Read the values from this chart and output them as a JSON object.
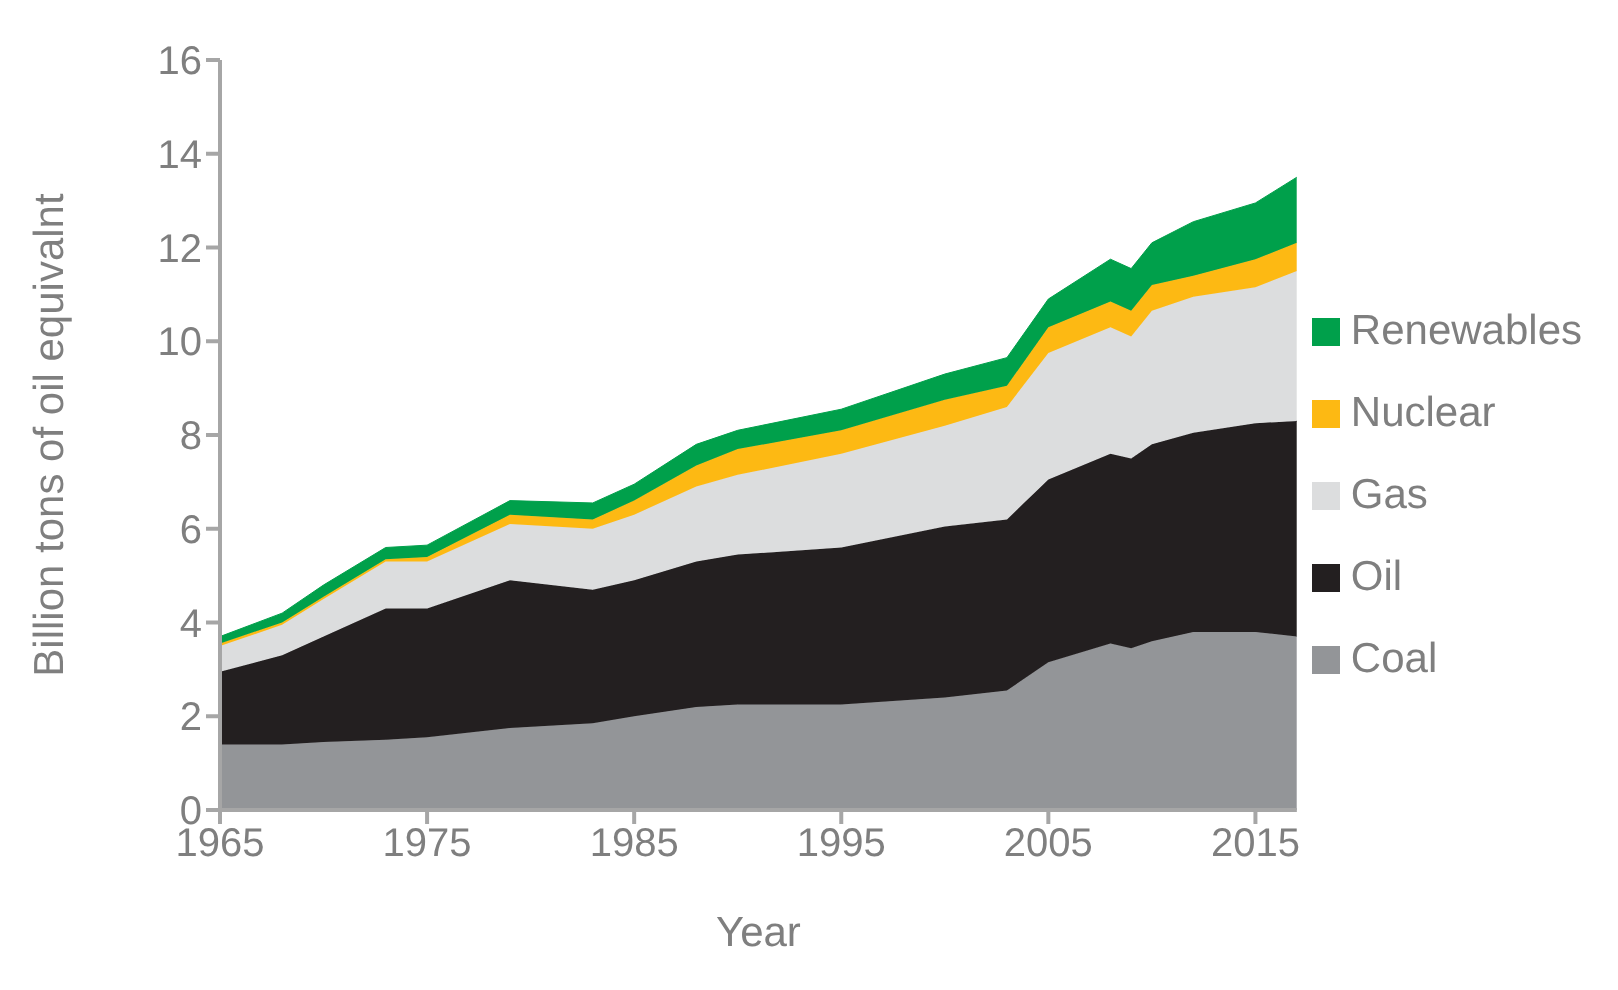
{
  "chart_data": {
    "type": "area",
    "stacked": true,
    "xlabel": "Year",
    "ylabel": "Billion tons of oil equivalnt",
    "x": [
      1965,
      1968,
      1970,
      1973,
      1975,
      1979,
      1983,
      1985,
      1988,
      1990,
      1995,
      2000,
      2003,
      2005,
      2008,
      2009,
      2010,
      2012,
      2015,
      2017
    ],
    "series": [
      {
        "name": "Coal",
        "color": "#939598",
        "values": [
          1.4,
          1.4,
          1.45,
          1.5,
          1.55,
          1.75,
          1.85,
          2.0,
          2.2,
          2.25,
          2.25,
          2.4,
          2.55,
          3.15,
          3.55,
          3.45,
          3.6,
          3.8,
          3.8,
          3.7
        ]
      },
      {
        "name": "Oil",
        "color": "#231f20",
        "values": [
          1.55,
          1.9,
          2.25,
          2.8,
          2.75,
          3.15,
          2.85,
          2.9,
          3.1,
          3.2,
          3.35,
          3.65,
          3.65,
          3.9,
          4.05,
          4.05,
          4.2,
          4.25,
          4.45,
          4.6
        ]
      },
      {
        "name": "Gas",
        "color": "#dcddde",
        "values": [
          0.55,
          0.65,
          0.8,
          1.0,
          1.0,
          1.2,
          1.3,
          1.4,
          1.6,
          1.7,
          2.0,
          2.15,
          2.4,
          2.7,
          2.7,
          2.6,
          2.85,
          2.9,
          2.9,
          3.2
        ]
      },
      {
        "name": "Nuclear",
        "color": "#fdb913",
        "values": [
          0.05,
          0.05,
          0.05,
          0.05,
          0.1,
          0.2,
          0.2,
          0.3,
          0.45,
          0.55,
          0.5,
          0.55,
          0.45,
          0.55,
          0.55,
          0.55,
          0.55,
          0.45,
          0.6,
          0.6
        ]
      },
      {
        "name": "Renewables",
        "color": "#00a04b",
        "values": [
          0.15,
          0.2,
          0.25,
          0.25,
          0.25,
          0.3,
          0.35,
          0.35,
          0.45,
          0.4,
          0.45,
          0.55,
          0.6,
          0.6,
          0.9,
          0.9,
          0.9,
          1.15,
          1.2,
          1.4
        ]
      }
    ],
    "xlim": [
      1965,
      2017
    ],
    "xticks": [
      1965,
      1975,
      1985,
      1995,
      2005,
      2015
    ],
    "ylim": [
      0,
      16
    ],
    "yticks": [
      0,
      2,
      4,
      6,
      8,
      10,
      12,
      14,
      16
    ],
    "grid": false,
    "legend": "right"
  }
}
